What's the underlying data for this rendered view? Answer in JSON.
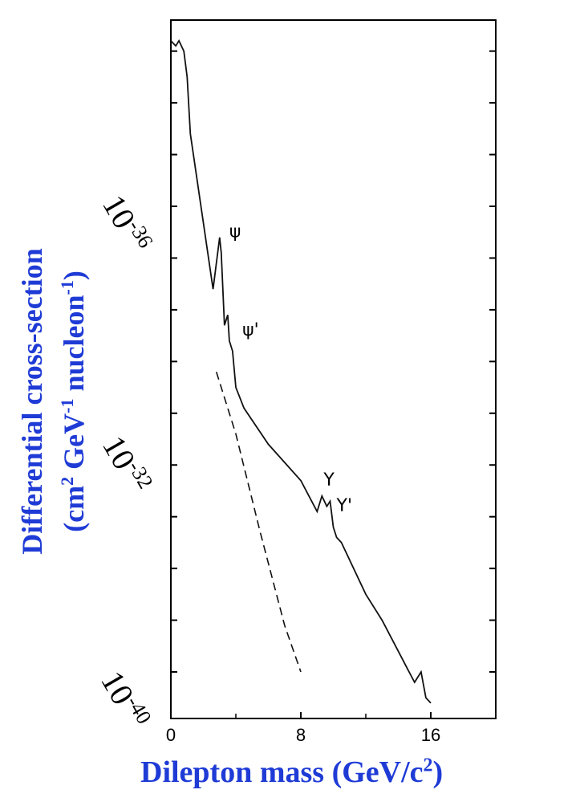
{
  "chart_data": {
    "type": "line",
    "title": "",
    "xlabel": {
      "main": "Dilepton mass (GeV/c",
      "sup": "2",
      "tail": ")"
    },
    "ylabel": {
      "line1": "Differential cross-section",
      "line2_a": "(cm",
      "line2_sup1": "2",
      "line2_b": " GeV",
      "line2_sup2": "-1",
      "line2_c": " nucleon",
      "line2_sup3": "-1",
      "line2_d": ")"
    },
    "xlim": [
      0,
      20
    ],
    "ylim_log10": [
      -40,
      -28
    ],
    "y_scale": "log",
    "x_ticks": [
      "0",
      "8",
      "16"
    ],
    "y_tick_labels": [
      {
        "base": "10",
        "exp": "-36"
      },
      {
        "base": "10",
        "exp": "-32"
      },
      {
        "base": "10",
        "exp": "-40"
      }
    ],
    "annotations": [
      "ψ",
      "ψ'",
      "Υ",
      "Υ'"
    ],
    "series": [
      {
        "style": "solid",
        "x": [
          0.0,
          0.3,
          0.5,
          0.8,
          1.0,
          1.2,
          2.6,
          3.0,
          3.1,
          3.3,
          3.5,
          3.6,
          3.8,
          4.0,
          4.5,
          6.0,
          8.0,
          9.0,
          9.3,
          9.6,
          9.8,
          10.0,
          10.2,
          10.5,
          12.0,
          13.0,
          14.5,
          15.0,
          15.4,
          15.7,
          16.0
        ],
        "y": [
          -28.8,
          -28.9,
          -28.8,
          -29.0,
          -29.5,
          -30.6,
          -33.6,
          -32.6,
          -32.9,
          -34.3,
          -34.1,
          -34.6,
          -34.8,
          -35.5,
          -35.9,
          -36.6,
          -37.3,
          -37.9,
          -37.6,
          -37.8,
          -37.7,
          -38.2,
          -38.4,
          -38.5,
          -39.5,
          -40.0,
          -40.9,
          -41.2,
          -41.0,
          -41.5,
          -41.6
        ]
      },
      {
        "style": "dashed",
        "x": [
          2.8,
          4.0,
          5.5,
          7.0,
          8.0
        ],
        "y": [
          -35.2,
          -36.4,
          -38.3,
          -40.1,
          -41.0
        ]
      }
    ]
  }
}
